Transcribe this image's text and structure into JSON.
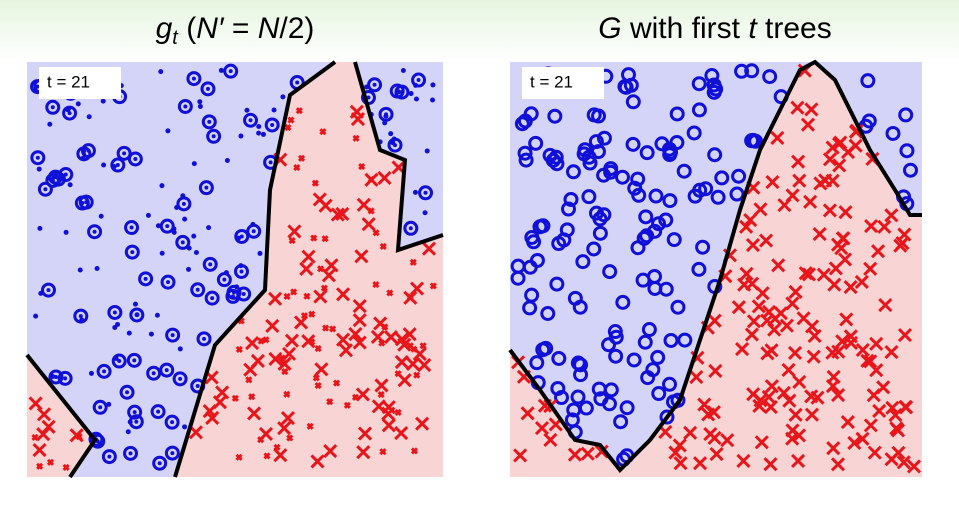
{
  "panels": [
    {
      "title": [
        "g",
        "t",
        " (",
        "N′",
        " = ",
        "N",
        "/2)"
      ],
      "label": "t = 21"
    },
    {
      "title": [
        "G",
        " with first ",
        "t",
        " trees"
      ],
      "label": "t = 21"
    }
  ]
}
